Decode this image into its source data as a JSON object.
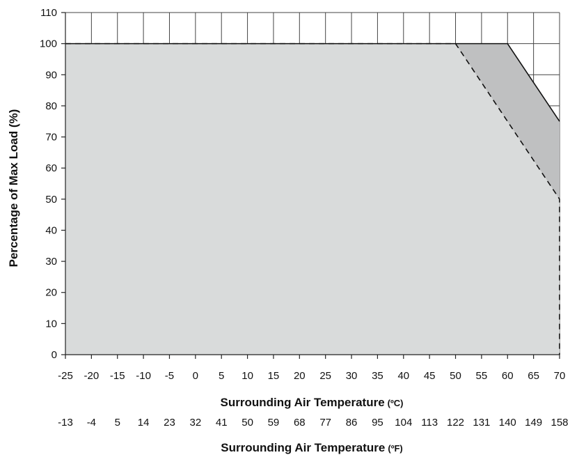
{
  "chart_data": {
    "type": "area",
    "x_unit": "°C",
    "xlim": [
      -25,
      70
    ],
    "ylim": [
      0,
      110
    ],
    "x_ticks": [
      -25,
      -20,
      -15,
      -10,
      -5,
      0,
      5,
      10,
      15,
      20,
      25,
      30,
      35,
      40,
      45,
      50,
      55,
      60,
      65,
      70
    ],
    "x_ticks_secondary": [
      "-13",
      "-4",
      "5",
      "14",
      "23",
      "32",
      "41",
      "50",
      "59",
      "68",
      "77",
      "86",
      "95",
      "104",
      "113",
      "122",
      "131",
      "140",
      "149",
      "158"
    ],
    "y_ticks": [
      0,
      10,
      20,
      30,
      40,
      50,
      60,
      70,
      80,
      90,
      100,
      110
    ],
    "grid": true,
    "ylabel": "Percentage of Max Load (%)",
    "xlabel": {
      "text": "Surrounding Air Temperature",
      "unit": "(ºC)"
    },
    "xlabel_secondary": {
      "text": "Surrounding Air Temperature",
      "unit": "(ºF)"
    },
    "series": [
      {
        "style": "solid",
        "color": "#111111",
        "fill": "#bfc0c1",
        "x": [
          -25,
          60,
          70
        ],
        "y": [
          100,
          100,
          75
        ]
      },
      {
        "style": "dashed",
        "color": "#111111",
        "fill": "#d9dbdb",
        "x": [
          -25,
          50,
          70,
          70
        ],
        "y": [
          100,
          100,
          50,
          0
        ]
      }
    ]
  }
}
